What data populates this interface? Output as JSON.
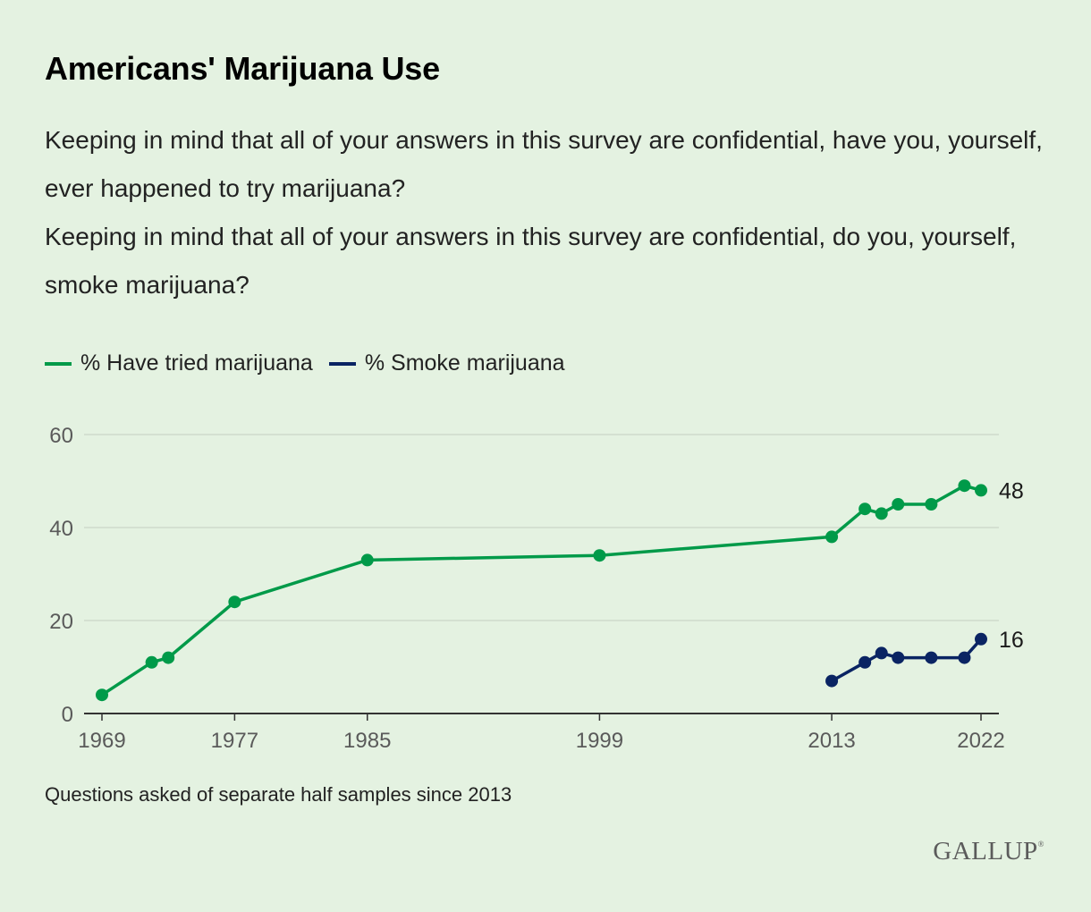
{
  "title": "Americans' Marijuana Use",
  "subtitle": [
    "Keeping in mind that all of your answers in this survey are confidential, have you, yourself, ever happened to try marijuana?",
    "Keeping in mind that all of your answers in this survey are confidential, do you, yourself, smoke marijuana?"
  ],
  "note": "Questions asked of separate half samples since 2013",
  "logo": "GALLUP",
  "colors": {
    "tried": "#009a49",
    "smoke": "#0a2463",
    "grid": "#cfd9cc",
    "axis": "#333333",
    "tick": "#5a5a5a"
  },
  "chart_data": {
    "type": "line",
    "legend_position": "top-left",
    "grid": true,
    "xlim": [
      1969,
      2022
    ],
    "ylim": [
      0,
      60
    ],
    "x_ticks": [
      1969,
      1977,
      1985,
      1999,
      2013,
      2022
    ],
    "y_ticks": [
      0,
      20,
      40,
      60
    ],
    "series": [
      {
        "name": "% Have tried marijuana",
        "key": "tried",
        "points": [
          {
            "x": 1969,
            "y": 4
          },
          {
            "x": 1972,
            "y": 11
          },
          {
            "x": 1973,
            "y": 12
          },
          {
            "x": 1977,
            "y": 24
          },
          {
            "x": 1985,
            "y": 33
          },
          {
            "x": 1999,
            "y": 34
          },
          {
            "x": 2013,
            "y": 38
          },
          {
            "x": 2015,
            "y": 44
          },
          {
            "x": 2016,
            "y": 43
          },
          {
            "x": 2017,
            "y": 45
          },
          {
            "x": 2019,
            "y": 45
          },
          {
            "x": 2021,
            "y": 49
          },
          {
            "x": 2022,
            "y": 48
          }
        ],
        "end_label": "48"
      },
      {
        "name": "% Smoke marijuana",
        "key": "smoke",
        "points": [
          {
            "x": 2013,
            "y": 7
          },
          {
            "x": 2015,
            "y": 11
          },
          {
            "x": 2016,
            "y": 13
          },
          {
            "x": 2017,
            "y": 12
          },
          {
            "x": 2019,
            "y": 12
          },
          {
            "x": 2021,
            "y": 12
          },
          {
            "x": 2022,
            "y": 16
          }
        ],
        "end_label": "16"
      }
    ]
  }
}
